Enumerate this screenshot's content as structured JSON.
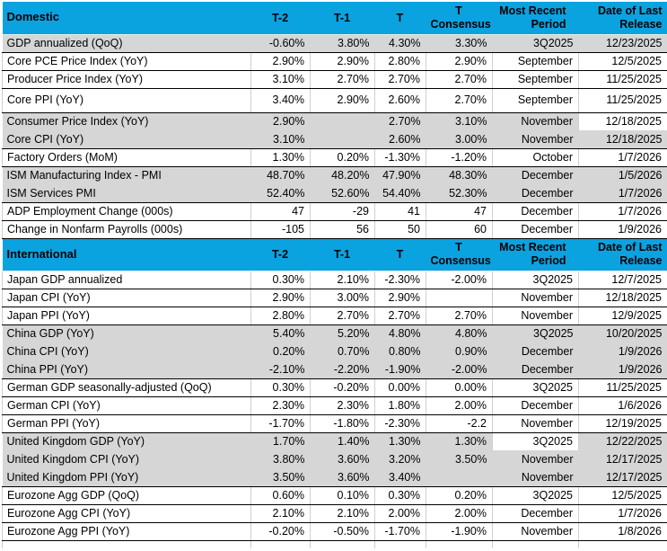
{
  "colors": {
    "header_bg": "#0ba2e0",
    "row_gray": "#d6d6d6",
    "row_white": "#ffffff",
    "grid_line": "#cfcfcf",
    "row_separator": "#000000",
    "text": "#000000"
  },
  "columns": {
    "t2": "T-2",
    "t1": "T-1",
    "t": "T",
    "consensus": [
      "T",
      "Consensus"
    ],
    "period": [
      "Most Recent",
      "Period"
    ],
    "release": [
      "Date of Last",
      "Release"
    ]
  },
  "sections": [
    {
      "label": "Domestic",
      "rows": [
        {
          "name": "GDP annualized (QoQ)",
          "t2": "-0.60%",
          "t1": "3.80%",
          "t": "4.30%",
          "consensus": "3.30%",
          "period": "3Q2025",
          "release": "12/23/2025",
          "shade": "gray"
        },
        {
          "name": "Core PCE Price Index (YoY)",
          "t2": "2.90%",
          "t1": "2.90%",
          "t": "2.80%",
          "consensus": "2.90%",
          "period": "September",
          "release": "12/5/2025",
          "shade": "white"
        },
        {
          "name": "Producer Price Index (YoY)",
          "t2": "3.10%",
          "t1": "2.70%",
          "t": "2.70%",
          "consensus": "2.70%",
          "period": "September",
          "release": "11/25/2025",
          "shade": "white"
        },
        {
          "name": "Core PPI (YoY)",
          "t2": "3.40%",
          "t1": "2.90%",
          "t": "2.60%",
          "consensus": "2.70%",
          "period": "September",
          "release": "11/25/2025",
          "shade": "white",
          "tall": true
        },
        {
          "name": "Consumer Price Index (YoY)",
          "t2": "2.90%",
          "t1": "",
          "t": "2.70%",
          "consensus": "3.10%",
          "period": "November",
          "release": "12/18/2025",
          "shade": "gray",
          "white_cells": [
            "release"
          ]
        },
        {
          "name": "Core CPI  (YoY)",
          "t2": "3.10%",
          "t1": "",
          "t": "2.60%",
          "consensus": "3.00%",
          "period": "November",
          "release": "12/18/2025",
          "shade": "gray"
        },
        {
          "name": "Factory Orders (MoM)",
          "t2": "1.30%",
          "t1": "0.20%",
          "t": "-1.30%",
          "consensus": "-1.20%",
          "period": "October",
          "release": "1/7/2026",
          "shade": "white"
        },
        {
          "name": "ISM Manufacturing Index - PMI",
          "t2": "48.70%",
          "t1": "48.20%",
          "t": "47.90%",
          "consensus": "48.30%",
          "period": "December",
          "release": "1/5/2026",
          "shade": "gray"
        },
        {
          "name": "ISM Services PMI",
          "t2": "52.40%",
          "t1": "52.60%",
          "t": "54.40%",
          "consensus": "52.30%",
          "period": "December",
          "release": "1/7/2026",
          "shade": "gray"
        },
        {
          "name": "ADP Employment Change (000s)",
          "t2": "47",
          "t1": "-29",
          "t": "41",
          "consensus": "47",
          "period": "December",
          "release": "1/7/2026",
          "shade": "white"
        },
        {
          "name": "Change in Nonfarm Payrolls (000s)",
          "t2": "-105",
          "t1": "56",
          "t": "50",
          "consensus": "60",
          "period": "December",
          "release": "1/9/2026",
          "shade": "white"
        }
      ]
    },
    {
      "label": "International",
      "rows": [
        {
          "name": "Japan GDP annualized",
          "t2": "0.30%",
          "t1": "2.10%",
          "t": "-2.30%",
          "consensus": "-2.00%",
          "period": "3Q2025",
          "release": "12/7/2025",
          "shade": "white"
        },
        {
          "name": "Japan CPI (YoY)",
          "t2": "2.90%",
          "t1": "3.00%",
          "t": "2.90%",
          "consensus": "",
          "period": "November",
          "release": "12/18/2025",
          "shade": "white"
        },
        {
          "name": "Japan PPI (YoY)",
          "t2": "2.80%",
          "t1": "2.70%",
          "t": "2.70%",
          "consensus": "2.70%",
          "period": "November",
          "release": "12/9/2025",
          "shade": "white"
        },
        {
          "name": "China GDP (YoY)",
          "t2": "5.40%",
          "t1": "5.20%",
          "t": "4.80%",
          "consensus": "4.80%",
          "period": "3Q2025",
          "release": "10/20/2025",
          "shade": "gray"
        },
        {
          "name": "China CPI (YoY)",
          "t2": "0.20%",
          "t1": "0.70%",
          "t": "0.80%",
          "consensus": "0.90%",
          "period": "December",
          "release": "1/9/2026",
          "shade": "gray"
        },
        {
          "name": "China PPI (YoY)",
          "t2": "-2.10%",
          "t1": "-2.20%",
          "t": "-1.90%",
          "consensus": "-2.00%",
          "period": "December",
          "release": "1/9/2026",
          "shade": "gray"
        },
        {
          "name": "German GDP seasonally-adjusted (QoQ)",
          "t2": "0.30%",
          "t1": "-0.20%",
          "t": "0.00%",
          "consensus": "0.00%",
          "period": "3Q2025",
          "release": "11/25/2025",
          "shade": "white"
        },
        {
          "name": "German CPI (YoY)",
          "t2": "2.30%",
          "t1": "2.30%",
          "t": "1.80%",
          "consensus": "2.00%",
          "period": "December",
          "release": "1/6/2026",
          "shade": "white"
        },
        {
          "name": "German PPI (YoY)",
          "t2": "-1.70%",
          "t1": "-1.80%",
          "t": "-2.30%",
          "consensus": "-2.2",
          "period": "November",
          "release": "12/19/2025",
          "shade": "white"
        },
        {
          "name": "United Kingdom GDP (YoY)",
          "t2": "1.70%",
          "t1": "1.40%",
          "t": "1.30%",
          "consensus": "1.30%",
          "period": "3Q2025",
          "release": "12/22/2025",
          "shade": "gray",
          "white_cells": [
            "period"
          ]
        },
        {
          "name": "United Kingdom CPI (YoY)",
          "t2": "3.80%",
          "t1": "3.60%",
          "t": "3.20%",
          "consensus": "3.50%",
          "period": "November",
          "release": "12/17/2025",
          "shade": "gray"
        },
        {
          "name": "United Kingdom  PPI (YoY)",
          "t2": "3.50%",
          "t1": "3.60%",
          "t": "3.40%",
          "consensus": "",
          "period": "November",
          "release": "12/17/2025",
          "shade": "gray"
        },
        {
          "name": "Eurozone Agg GDP (QoQ)",
          "t2": "0.60%",
          "t1": "0.10%",
          "t": "0.30%",
          "consensus": "0.20%",
          "period": "3Q2025",
          "release": "12/5/2025",
          "shade": "white"
        },
        {
          "name": "Eurozone Agg CPI (YoY)",
          "t2": "2.10%",
          "t1": "2.10%",
          "t": "2.00%",
          "consensus": "2.00%",
          "period": "December",
          "release": "1/7/2026",
          "shade": "white"
        },
        {
          "name": "Eurozone Agg PPI (YoY)",
          "t2": "-0.20%",
          "t1": "-0.50%",
          "t": "-1.70%",
          "consensus": "-1.90%",
          "period": "November",
          "release": "1/8/2026",
          "shade": "white"
        }
      ]
    }
  ]
}
